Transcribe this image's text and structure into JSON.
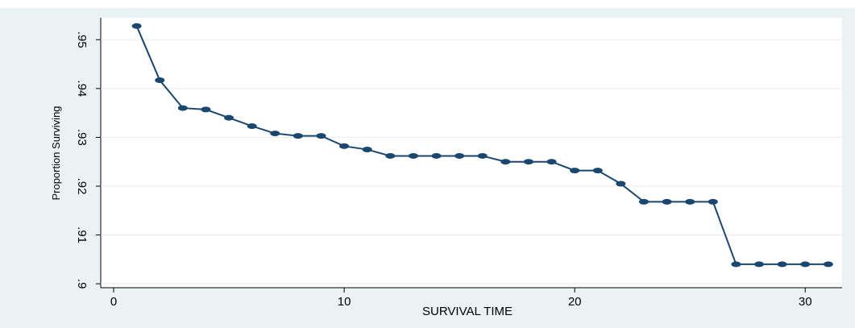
{
  "chart_data": {
    "type": "line",
    "x_label": "SURVIVAL TIME",
    "y_label": "Proportion Surviving",
    "x": [
      1,
      2,
      3,
      4,
      5,
      6,
      7,
      8,
      9,
      10,
      11,
      12,
      13,
      14,
      15,
      16,
      17,
      18,
      19,
      20,
      21,
      22,
      23,
      24,
      25,
      26,
      27,
      28,
      29,
      30,
      31
    ],
    "series": [
      {
        "color": "#1a476f",
        "values": [
          0.9528,
          0.9417,
          0.936,
          0.9357,
          0.934,
          0.9323,
          0.9308,
          0.9303,
          0.9303,
          0.9282,
          0.9275,
          0.9262,
          0.9262,
          0.9262,
          0.9262,
          0.9262,
          0.925,
          0.925,
          0.925,
          0.9232,
          0.9232,
          0.9205,
          0.9168,
          0.9168,
          0.9168,
          0.9168,
          0.904,
          0.904,
          0.904,
          0.904,
          0.904
        ]
      }
    ],
    "xlim": [
      -0.56,
      31.6
    ],
    "ylim": [
      0.8992,
      0.9545
    ],
    "xticks": [
      0,
      10,
      20,
      30
    ],
    "yticks": [
      {
        "value": 0.9,
        "label": ".9"
      },
      {
        "value": 0.91,
        "label": ".91"
      },
      {
        "value": 0.92,
        "label": ".92"
      },
      {
        "value": 0.93,
        "label": ".93"
      },
      {
        "value": 0.94,
        "label": ".94"
      },
      {
        "value": 0.95,
        "label": ".95"
      }
    ],
    "grid": true
  }
}
